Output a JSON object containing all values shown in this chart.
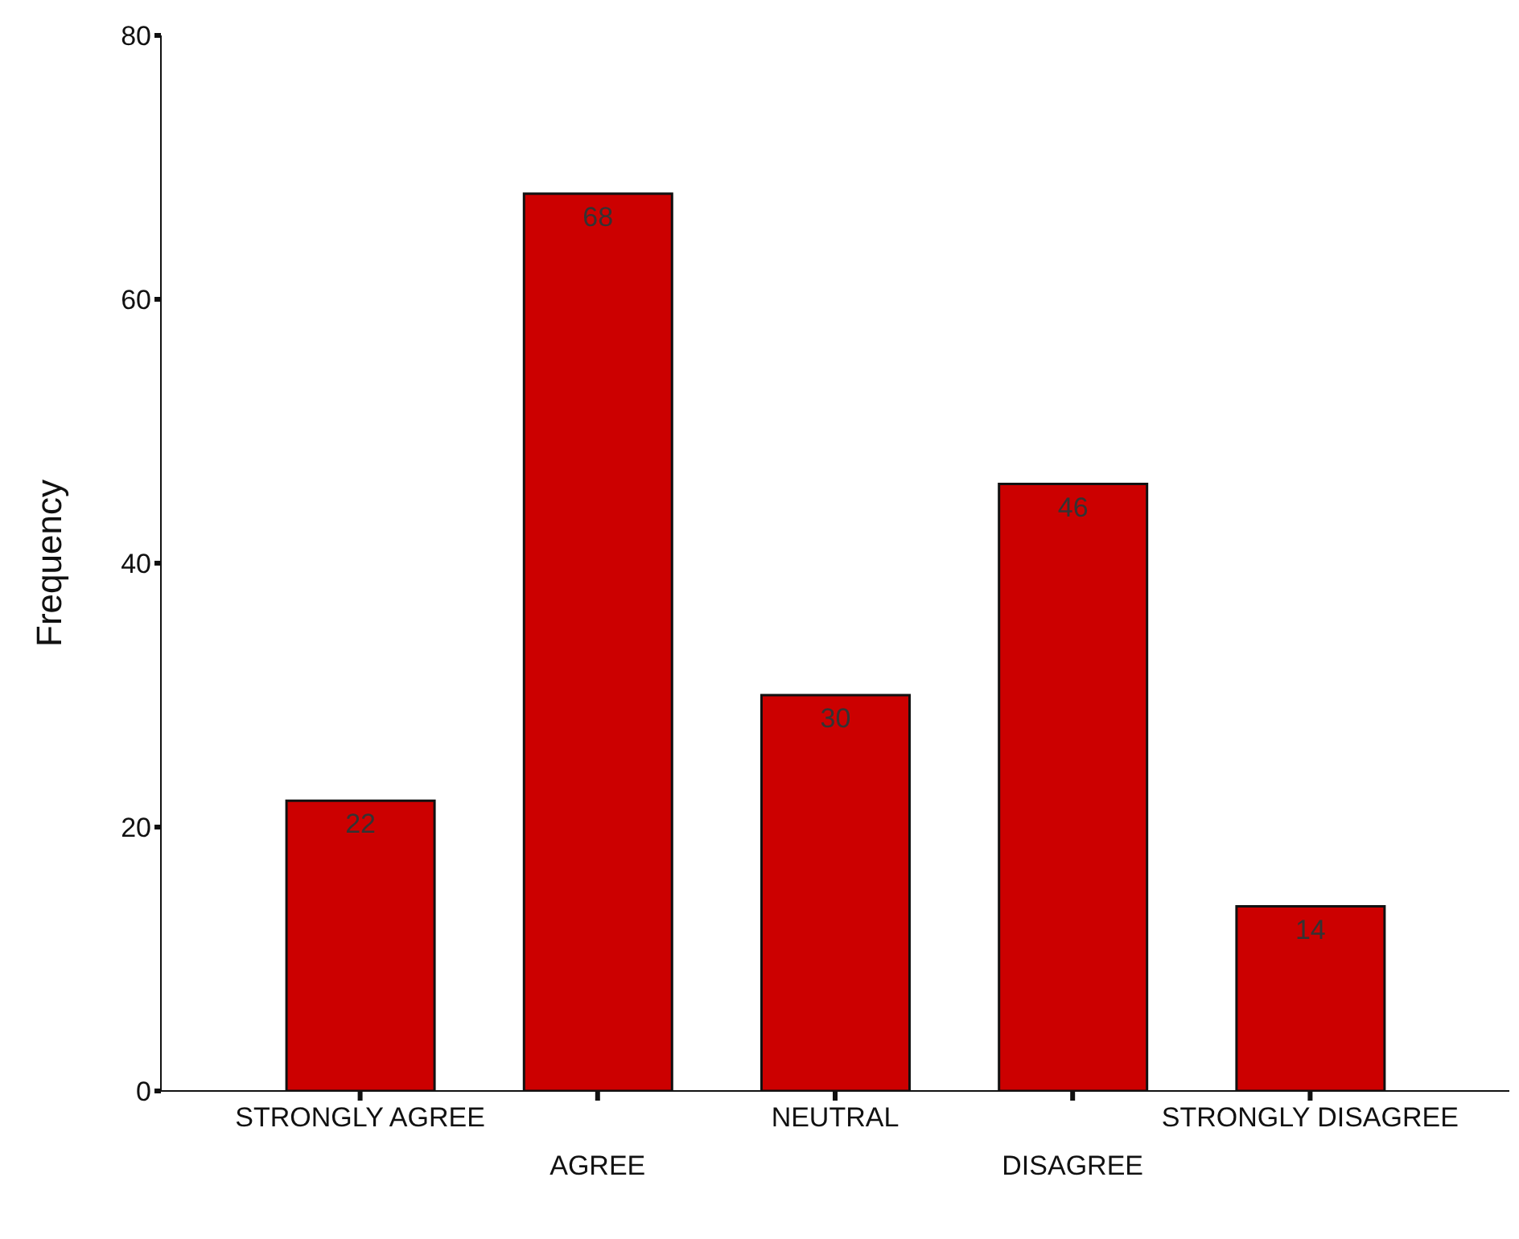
{
  "chart_data": {
    "type": "bar",
    "ylabel": "Frequency",
    "categories": [
      "STRONGLY AGREE",
      "AGREE",
      "NEUTRAL",
      "DISAGREE",
      "STRONGLY DISAGREE"
    ],
    "values": [
      22,
      68,
      30,
      46,
      14
    ],
    "color": "#cc0000",
    "ylim": [
      0,
      80
    ],
    "yticks": [
      0,
      20,
      40,
      60,
      80
    ],
    "grid": false,
    "legend": false,
    "data_labels": true
  }
}
